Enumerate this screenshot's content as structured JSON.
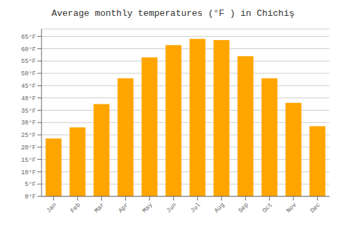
{
  "chart_data": {
    "type": "bar",
    "title": "Average monthly temperatures (°F ) in Chichiş",
    "categories": [
      "Jan",
      "Feb",
      "Mar",
      "Apr",
      "May",
      "Jun",
      "Jul",
      "Aug",
      "Sep",
      "Oct",
      "Nov",
      "Dec"
    ],
    "values": [
      23.5,
      28.0,
      37.5,
      48.0,
      56.5,
      61.5,
      64.0,
      63.5,
      57.0,
      48.0,
      38.0,
      28.5
    ],
    "color": "#FFA500",
    "ylim": [
      0,
      68
    ],
    "yticks": [
      {
        "value": 0,
        "label": "0°F"
      },
      {
        "value": 5,
        "label": "5°F"
      },
      {
        "value": 10,
        "label": "10°F"
      },
      {
        "value": 15,
        "label": "15°F"
      },
      {
        "value": 20,
        "label": "20°F"
      },
      {
        "value": 25,
        "label": "25°F"
      },
      {
        "value": 30,
        "label": "30°F"
      },
      {
        "value": 35,
        "label": "35°F"
      },
      {
        "value": 40,
        "label": "40°F"
      },
      {
        "value": 45,
        "label": "45°F"
      },
      {
        "value": 50,
        "label": "50°F"
      },
      {
        "value": 55,
        "label": "55°F"
      },
      {
        "value": 60,
        "label": "60°F"
      },
      {
        "value": 65,
        "label": "65°F"
      }
    ],
    "grid": true
  }
}
